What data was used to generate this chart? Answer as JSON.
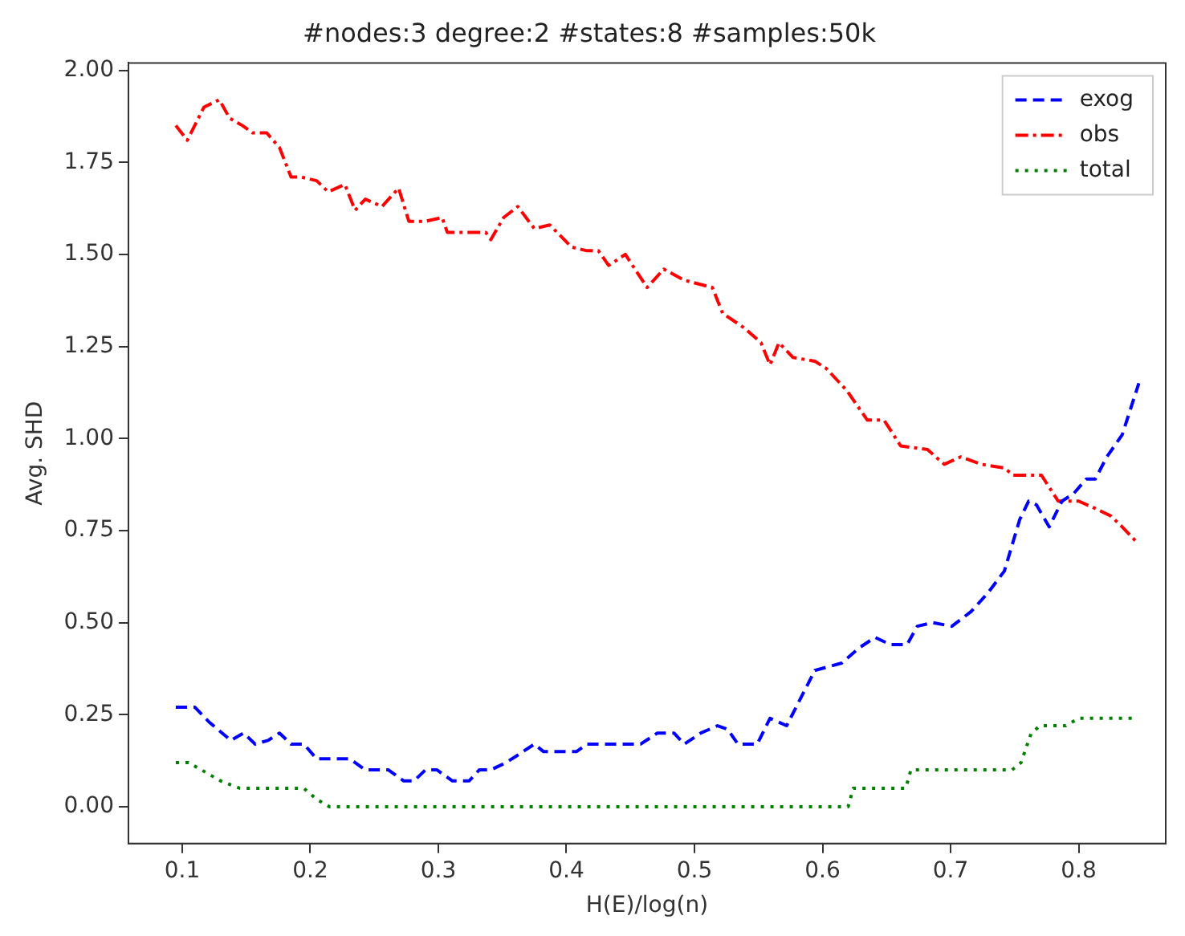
{
  "chart_data": {
    "type": "line",
    "title": "#nodes:3 degree:2 #states:8 #samples:50k",
    "xlabel": "H(E)/log(n)",
    "ylabel": "Avg. SHD",
    "xlim": [
      0.058,
      0.868
    ],
    "ylim": [
      -0.1,
      2.02
    ],
    "xticks": [
      0.1,
      0.2,
      0.3,
      0.4,
      0.5,
      0.6,
      0.7,
      0.8
    ],
    "yticks": [
      {
        "value": 0,
        "label": "0.00"
      },
      {
        "value": 0.25,
        "label": "0.25"
      },
      {
        "value": 0.5,
        "label": "0.50"
      },
      {
        "value": 0.75,
        "label": "0.75"
      },
      {
        "value": 1,
        "label": "1.00"
      },
      {
        "value": 1.25,
        "label": "1.25"
      },
      {
        "value": 1.5,
        "label": "1.50"
      },
      {
        "value": 1.75,
        "label": "1.75"
      },
      {
        "value": 2,
        "label": "2.00"
      }
    ],
    "grid": false,
    "legend": "top right",
    "marker": "none",
    "series": [
      {
        "name": "exog",
        "color": "#0000ff",
        "line_style": "dashed",
        "x": [
          0.095,
          0.11,
          0.121,
          0.138,
          0.148,
          0.157,
          0.167,
          0.176,
          0.185,
          0.195,
          0.205,
          0.231,
          0.243,
          0.261,
          0.273,
          0.281,
          0.29,
          0.299,
          0.311,
          0.324,
          0.332,
          0.341,
          0.353,
          0.362,
          0.375,
          0.382,
          0.408,
          0.416,
          0.458,
          0.471,
          0.484,
          0.492,
          0.505,
          0.518,
          0.526,
          0.534,
          0.549,
          0.559,
          0.572,
          0.594,
          0.615,
          0.628,
          0.641,
          0.653,
          0.666,
          0.674,
          0.686,
          0.701,
          0.716,
          0.729,
          0.742,
          0.754,
          0.761,
          0.767,
          0.777,
          0.787,
          0.796,
          0.806,
          0.813,
          0.822,
          0.834,
          0.847
        ],
        "values": [
          0.27,
          0.27,
          0.23,
          0.18,
          0.2,
          0.17,
          0.18,
          0.2,
          0.17,
          0.17,
          0.13,
          0.13,
          0.1,
          0.1,
          0.07,
          0.07,
          0.1,
          0.1,
          0.07,
          0.07,
          0.1,
          0.1,
          0.12,
          0.14,
          0.17,
          0.15,
          0.15,
          0.17,
          0.17,
          0.2,
          0.2,
          0.17,
          0.2,
          0.22,
          0.21,
          0.17,
          0.17,
          0.24,
          0.22,
          0.37,
          0.39,
          0.43,
          0.46,
          0.44,
          0.44,
          0.49,
          0.5,
          0.49,
          0.53,
          0.58,
          0.64,
          0.78,
          0.83,
          0.82,
          0.76,
          0.83,
          0.85,
          0.89,
          0.89,
          0.95,
          1.01,
          1.15
        ]
      },
      {
        "name": "obs",
        "color": "#ff0000",
        "line_style": "dashdot",
        "x": [
          0.095,
          0.104,
          0.117,
          0.129,
          0.137,
          0.147,
          0.155,
          0.166,
          0.176,
          0.185,
          0.193,
          0.205,
          0.214,
          0.227,
          0.235,
          0.243,
          0.256,
          0.269,
          0.277,
          0.29,
          0.303,
          0.307,
          0.337,
          0.341,
          0.351,
          0.362,
          0.375,
          0.387,
          0.404,
          0.416,
          0.425,
          0.433,
          0.446,
          0.463,
          0.476,
          0.492,
          0.514,
          0.522,
          0.539,
          0.552,
          0.559,
          0.566,
          0.577,
          0.594,
          0.603,
          0.619,
          0.635,
          0.648,
          0.661,
          0.682,
          0.695,
          0.708,
          0.724,
          0.742,
          0.749,
          0.771,
          0.784,
          0.8,
          0.813,
          0.825,
          0.834,
          0.845
        ],
        "values": [
          1.85,
          1.81,
          1.9,
          1.92,
          1.87,
          1.85,
          1.83,
          1.83,
          1.79,
          1.71,
          1.71,
          1.7,
          1.67,
          1.69,
          1.62,
          1.65,
          1.63,
          1.68,
          1.59,
          1.59,
          1.6,
          1.56,
          1.56,
          1.54,
          1.6,
          1.63,
          1.57,
          1.58,
          1.52,
          1.51,
          1.51,
          1.47,
          1.5,
          1.41,
          1.46,
          1.43,
          1.41,
          1.34,
          1.3,
          1.26,
          1.2,
          1.26,
          1.22,
          1.21,
          1.19,
          1.13,
          1.05,
          1.05,
          0.98,
          0.97,
          0.93,
          0.95,
          0.93,
          0.92,
          0.9,
          0.9,
          0.83,
          0.83,
          0.81,
          0.79,
          0.76,
          0.72
        ]
      },
      {
        "name": "total",
        "color": "#008000",
        "line_style": "dotted",
        "x": [
          0.095,
          0.105,
          0.115,
          0.13,
          0.145,
          0.195,
          0.205,
          0.215,
          0.62,
          0.624,
          0.665,
          0.669,
          0.748,
          0.755,
          0.763,
          0.77,
          0.79,
          0.8,
          0.845
        ],
        "values": [
          0.12,
          0.12,
          0.1,
          0.07,
          0.05,
          0.05,
          0.02,
          0,
          0,
          0.05,
          0.05,
          0.1,
          0.1,
          0.12,
          0.2,
          0.22,
          0.22,
          0.24,
          0.24
        ]
      }
    ]
  }
}
